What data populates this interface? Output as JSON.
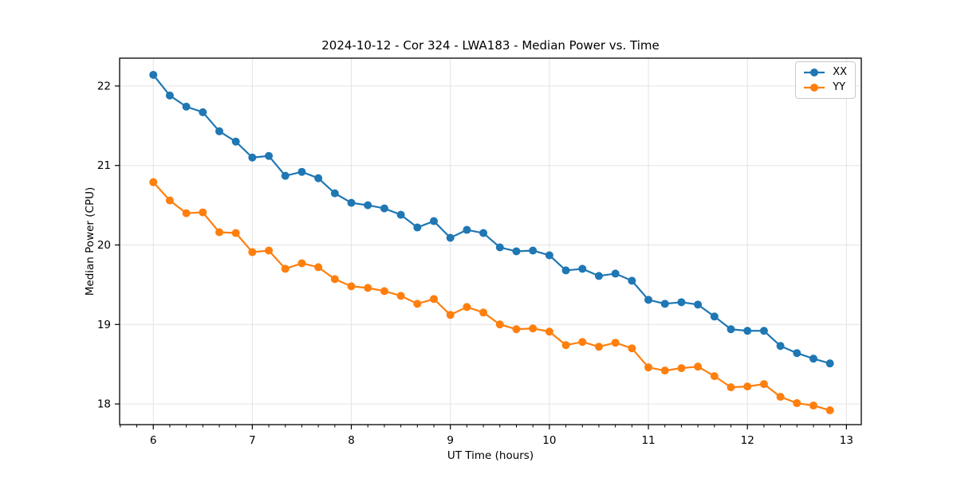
{
  "figure": {
    "background": "#ffffff"
  },
  "chart_data": {
    "type": "line",
    "title": "2024-10-12 - Cor 324 - LWA183 - Median Power vs. Time",
    "xlabel": "UT Time (hours)",
    "ylabel": "Median Power (CPU)",
    "xlim": [
      5.66,
      13.15
    ],
    "ylim": [
      17.74,
      22.35
    ],
    "x_ticks": [
      6,
      7,
      8,
      9,
      10,
      11,
      12,
      13
    ],
    "y_ticks": [
      18,
      19,
      20,
      21,
      22
    ],
    "x_minor_divisions": 6,
    "grid": true,
    "grid_color": "#e3e3e3",
    "legend_position": "upper right",
    "x": [
      6.0,
      6.1667,
      6.3333,
      6.5,
      6.6667,
      6.8333,
      7.0,
      7.1667,
      7.3333,
      7.5,
      7.6667,
      7.8333,
      8.0,
      8.1667,
      8.3333,
      8.5,
      8.6667,
      8.8333,
      9.0,
      9.1667,
      9.3333,
      9.5,
      9.6667,
      9.8333,
      10.0,
      10.1667,
      10.3333,
      10.5,
      10.6667,
      10.8333,
      11.0,
      11.1667,
      11.3333,
      11.5,
      11.6667,
      11.8333,
      12.0,
      12.1667,
      12.3333,
      12.5,
      12.6667,
      12.8333
    ],
    "series": [
      {
        "name": "XX",
        "color": "#1f77b4",
        "values": [
          22.14,
          21.88,
          21.74,
          21.67,
          21.43,
          21.3,
          21.1,
          21.12,
          20.87,
          20.92,
          20.84,
          20.65,
          20.53,
          20.5,
          20.46,
          20.38,
          20.22,
          20.3,
          20.09,
          20.19,
          20.15,
          19.97,
          19.92,
          19.93,
          19.87,
          19.68,
          19.7,
          19.61,
          19.64,
          19.55,
          19.31,
          19.26,
          19.28,
          19.25,
          19.1,
          18.94,
          18.92,
          18.92,
          18.73,
          18.64,
          18.57,
          18.51
        ]
      },
      {
        "name": "YY",
        "color": "#ff7f0e",
        "values": [
          20.79,
          20.56,
          20.4,
          20.41,
          20.16,
          20.15,
          19.91,
          19.93,
          19.7,
          19.77,
          19.72,
          19.57,
          19.48,
          19.46,
          19.42,
          19.36,
          19.26,
          19.32,
          19.12,
          19.22,
          19.15,
          19.0,
          18.94,
          18.95,
          18.91,
          18.74,
          18.78,
          18.72,
          18.77,
          18.7,
          18.46,
          18.42,
          18.45,
          18.47,
          18.35,
          18.21,
          18.22,
          18.25,
          18.09,
          18.01,
          17.98,
          17.92
        ]
      }
    ]
  },
  "legend": {
    "entries": [
      {
        "label": "XX",
        "color": "#1f77b4"
      },
      {
        "label": "YY",
        "color": "#ff7f0e"
      }
    ]
  }
}
